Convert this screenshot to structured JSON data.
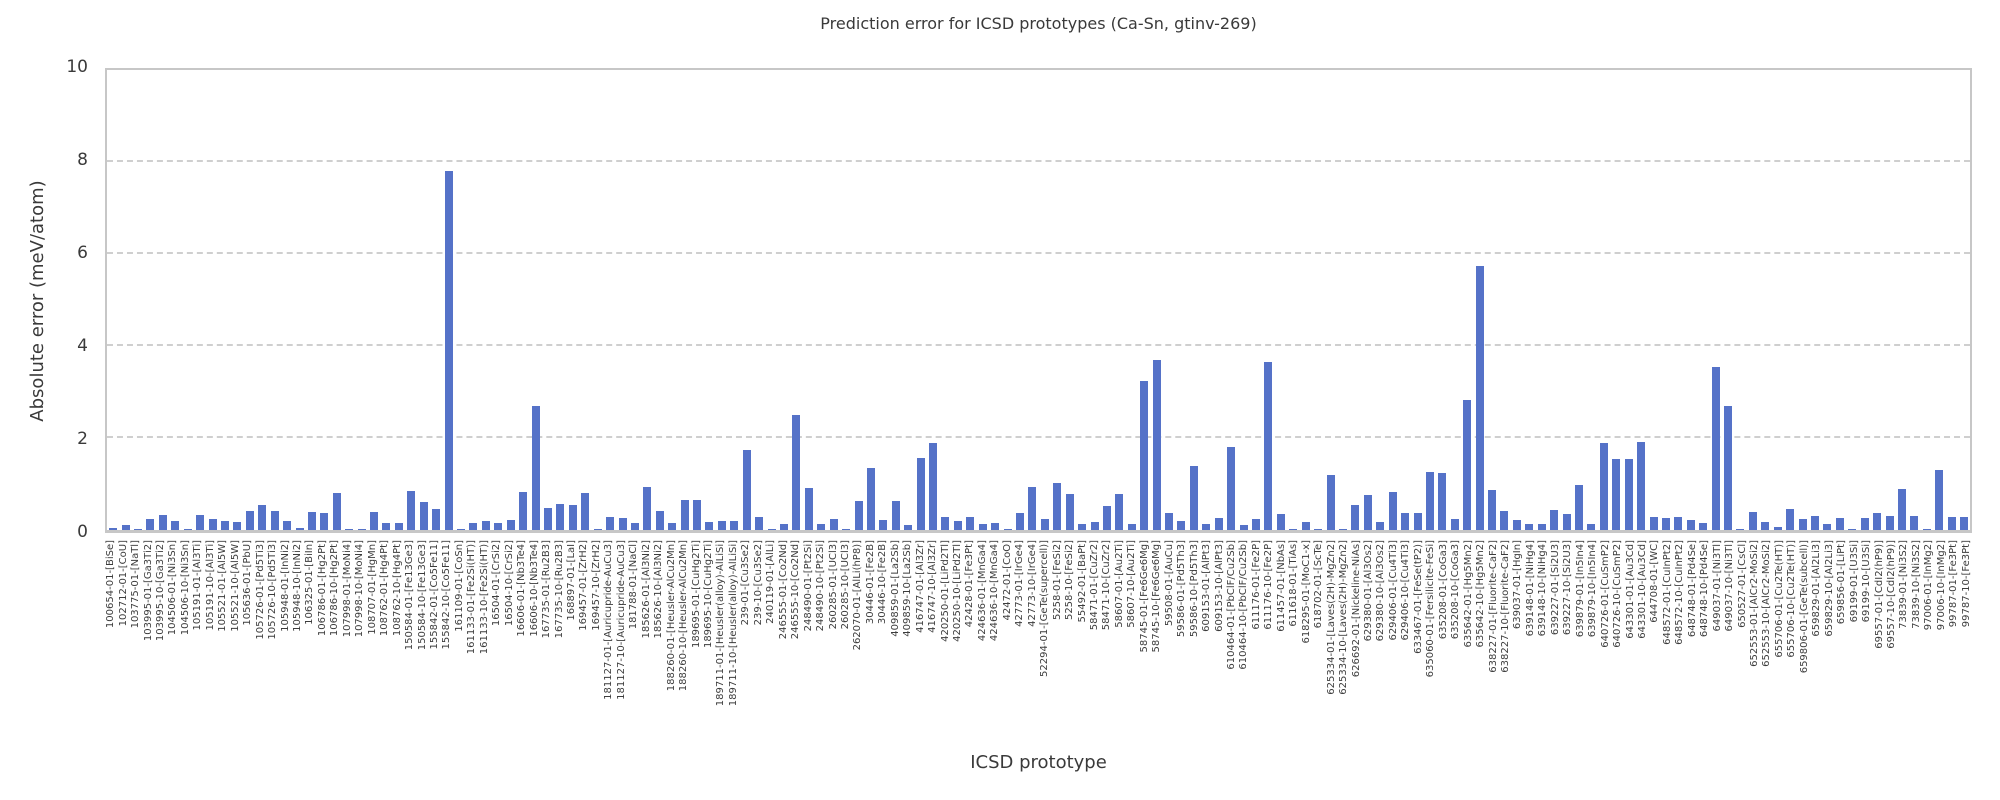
{
  "title": "Prediction error for ICSD prototypes (Ca-Sn, gtinv-269)",
  "colors": {
    "bar": "#5572c8",
    "grid": "#cfcfcf",
    "spine": "#c7c7c7",
    "text": "#3a3a3a"
  },
  "chart_data": {
    "type": "bar",
    "title": "Prediction error for ICSD prototypes (Ca-Sn, gtinv-269)",
    "xlabel": "ICSD prototype",
    "ylabel": "Absolute error (meV/atom)",
    "ylim": [
      0,
      10
    ],
    "yticks": [
      0,
      2,
      4,
      6,
      8,
      10
    ],
    "grid": "horizontal dashed at y=2,4,6,8",
    "legend": "none",
    "categories": [
      "100654-01-[BiSe]",
      "102712-01-[CoU]",
      "103775-01-[NaTl]",
      "103995-01-[Ga3Ti2]",
      "103995-10-[Ga3Ti2]",
      "104506-01-[Ni3Sn]",
      "104506-10-[Ni3Sn]",
      "105191-01-[Al3Ti]",
      "105191-10-[Al3Ti]",
      "105521-01-[Al5W]",
      "105521-10-[Al5W]",
      "105636-01-[PbU]",
      "105726-01-[Pd5Ti3]",
      "105726-10-[Pd5Ti3]",
      "105948-01-[InNi2]",
      "105948-10-[InNi2]",
      "106325-01-[BiIn]",
      "106786-01-[Hg2Pt]",
      "106786-10-[Hg2Pt]",
      "107998-01-[MoNi4]",
      "107998-10-[MoNi4]",
      "108707-01-[HgMn]",
      "108762-01-[Hg4Pt]",
      "108762-10-[Hg4Pt]",
      "150584-01-[Fe13Ge3]",
      "150584-10-[Fe13Ge3]",
      "155842-01-[Co5Fe11]",
      "155842-10-[Co5Fe11]",
      "161109-01-[CoSn]",
      "161133-01-[Fe2Si(HT)]",
      "161133-10-[Fe2Si(HT)]",
      "16504-01-[CrSi2]",
      "16504-10-[CrSi2]",
      "16606-01-[Nb3Te4]",
      "16606-10-[Nb3Te4]",
      "167735-01-[Ru2B3]",
      "167735-10-[Ru2B3]",
      "168897-01-[LaI]",
      "169457-01-[ZrH2]",
      "169457-10-[ZrH2]",
      "181127-01-[Auricupride-AuCu3]",
      "181127-10-[Auricupride-AuCu3]",
      "181788-01-[NaCl]",
      "185626-01-[Al3Ni2]",
      "185626-10-[Al3Ni2]",
      "188260-01-[Heusler-AlCu2Mn]",
      "188260-10-[Heusler-AlCu2Mn]",
      "189695-01-[CuHg2Ti]",
      "189695-10-[CuHg2Ti]",
      "189711-01-[Heusler(alloy)-AlLiSi]",
      "189711-10-[Heusler(alloy)-AlLiSi]",
      "239-01-[Cu3Se2]",
      "239-10-[Cu3Se2]",
      "240119-01-[AlLi]",
      "246555-01-[Co2Nd]",
      "246555-10-[Co2Nd]",
      "248490-01-[Pt2Si]",
      "248490-10-[Pt2Si]",
      "260285-01-[UCl3]",
      "260285-10-[UCl3]",
      "262070-01-[AlLi(hP8)]",
      "30446-01-[Fe2B]",
      "30446-10-[Fe2B]",
      "409859-01-[La2Sb]",
      "409859-10-[La2Sb]",
      "416747-01-[Al3Zr]",
      "416747-10-[Al3Zr]",
      "420250-01-[LiPd2Tl]",
      "420250-10-[LiPd2Tl]",
      "42428-01-[Fe3Pt]",
      "424636-01-[MnGa4]",
      "424636-10-[MnGa4]",
      "42472-01-[CoO]",
      "42773-01-[IrGe4]",
      "42773-10-[IrGe4]",
      "52294-01-[GeTe(supercell)]",
      "5258-01-[FeSi2]",
      "5258-10-[FeSi2]",
      "55492-01-[BaPt]",
      "58471-01-[CuZr2]",
      "58471-10-[CuZr2]",
      "58607-01-[Au2Ti]",
      "58607-10-[Au2Ti]",
      "58745-01-[Fe6Ge6Mg]",
      "58745-10-[Fe6Ge6Mg]",
      "59508-01-[AuCu]",
      "59586-01-[Pd5Th3]",
      "59586-10-[Pd5Th3]",
      "609153-01-[AlPt3]",
      "609153-10-[AlPt3]",
      "610464-01-[PbClF/Cu2Sb]",
      "610464-10-[PbClF/Cu2Sb]",
      "611176-01-[Fe2P]",
      "611176-10-[Fe2P]",
      "611457-01-[NbAs]",
      "611618-01-[TiAs]",
      "618295-01-[MoC1-x]",
      "618702-01-[ScTe]",
      "625334-01-[Laves(2H)-MgZn2]",
      "625334-10-[Laves(2H)-MgZn2]",
      "626692-01-[Nickeline-NiAs]",
      "629380-01-[Al3Os2]",
      "629380-10-[Al3Os2]",
      "629406-01-[Cu4Ti3]",
      "629406-10-[Cu4Ti3]",
      "633467-01-[FeSe(tP2)]",
      "635060-01-[Fersilicite-FeSi]",
      "635208-01-[CoGa3]",
      "635208-10-[CoGa3]",
      "635642-01-[Hg5Mn2]",
      "635642-10-[Hg5Mn2]",
      "638227-01-[Fluorite-CaF2]",
      "638227-10-[Fluorite-CaF2]",
      "639037-01-[HgIn]",
      "639148-01-[NiHg4]",
      "639148-10-[NiHg4]",
      "639227-01-[Si2U3]",
      "639227-10-[Si2U3]",
      "639879-01-[In5In4]",
      "639879-10-[In5In4]",
      "640726-01-[CuSmP2]",
      "640726-10-[CuSmP2]",
      "643301-01-[Au3Cd]",
      "643301-10-[Au3Cd]",
      "644708-01-[WC]",
      "648572-01-[CuInPt2]",
      "648572-10-[CuInPt2]",
      "648748-01-[Pd4Se]",
      "648748-10-[Pd4Se]",
      "649037-01-[Ni3Tl]",
      "649037-10-[Ni3Tl]",
      "650527-01-[CsCl]",
      "652553-01-[AlCr2-MoSi2]",
      "652553-10-[AlCr2-MoSi2]",
      "655706-01-[Cu2Te(HT)]",
      "655706-10-[Cu2Te(HT)]",
      "659806-01-[GeTe(subcell)]",
      "659829-01-[Al2Li3]",
      "659829-10-[Al2Li3]",
      "659856-01-[LiPt]",
      "69199-01-[U3Si]",
      "69199-10-[U3Si]",
      "69557-01-[CdI2(hP9)]",
      "69557-10-[CdI2(hP9)]",
      "73839-01-[Ni3S2]",
      "73839-10-[Ni3S2]",
      "97006-01-[InMg2]",
      "97006-10-[InMg2]",
      "99787-01-[Fe3Pt]",
      "99787-10-[Fe3Pt]"
    ],
    "values": [
      0.05,
      0.1,
      0.03,
      0.25,
      0.33,
      0.2,
      0.03,
      0.33,
      0.24,
      0.2,
      0.17,
      0.42,
      0.55,
      0.42,
      0.2,
      0.05,
      0.4,
      0.38,
      0.8,
      0.02,
      0.02,
      0.4,
      0.15,
      0.16,
      0.85,
      0.6,
      0.45,
      7.8,
      0.02,
      0.15,
      0.19,
      0.16,
      0.21,
      0.83,
      2.7,
      0.47,
      0.57,
      0.55,
      0.8,
      0.03,
      0.29,
      0.27,
      0.16,
      0.93,
      0.41,
      0.16,
      0.66,
      0.66,
      0.18,
      0.2,
      0.2,
      1.75,
      0.28,
      0.02,
      0.14,
      2.5,
      0.92,
      0.14,
      0.24,
      0.02,
      0.64,
      1.35,
      0.22,
      0.62,
      0.1,
      1.56,
      1.9,
      0.28,
      0.2,
      0.28,
      0.14,
      0.16,
      0.02,
      0.36,
      0.94,
      0.24,
      1.02,
      0.78,
      0.12,
      0.18,
      0.53,
      0.78,
      0.14,
      3.25,
      3.7,
      0.38,
      0.19,
      1.4,
      0.12,
      0.26,
      1.8,
      0.1,
      0.24,
      3.65,
      0.34,
      0.02,
      0.18,
      0.02,
      1.2,
      0.02,
      0.54,
      0.76,
      0.18,
      0.82,
      0.38,
      0.38,
      1.26,
      1.25,
      0.24,
      2.82,
      5.75,
      0.88,
      0.42,
      0.22,
      0.12,
      0.14,
      0.44,
      0.34,
      0.98,
      0.14,
      1.9,
      1.55,
      1.55,
      1.92,
      0.28,
      0.26,
      0.28,
      0.21,
      0.16,
      3.55,
      2.7,
      0.02,
      0.4,
      0.17,
      0.06,
      0.45,
      0.24,
      0.3,
      0.14,
      0.27,
      0.02,
      0.27,
      0.36,
      0.31,
      0.89,
      0.31,
      0.02,
      1.3,
      0.28,
      0.28
    ]
  }
}
